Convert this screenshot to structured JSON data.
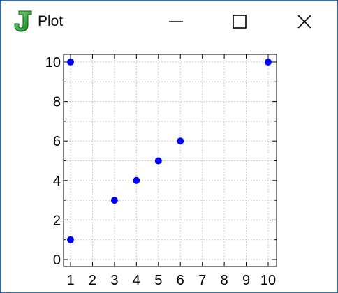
{
  "window": {
    "title": "Plot",
    "app_icon": "java-j-icon",
    "controls": {
      "minimize_icon": "minimize-icon",
      "maximize_icon": "maximize-icon",
      "close_icon": "close-icon"
    },
    "border_color": "#1a73d9"
  },
  "chart_data": {
    "type": "scatter",
    "title": "",
    "xlabel": "",
    "ylabel": "",
    "x": [
      1,
      3,
      4,
      5,
      6,
      1,
      10
    ],
    "y": [
      1,
      3,
      4,
      5,
      6,
      10,
      10
    ],
    "xlim": [
      1,
      10
    ],
    "ylim": [
      0,
      10
    ],
    "x_ticks": [
      "1",
      "2",
      "3",
      "4",
      "5",
      "6",
      "7",
      "8",
      "9",
      "10"
    ],
    "y_ticks": [
      "0",
      "2",
      "4",
      "6",
      "8",
      "10"
    ],
    "grid": true,
    "marker_color": "#0000ff",
    "grid_color": "#cccccc"
  }
}
